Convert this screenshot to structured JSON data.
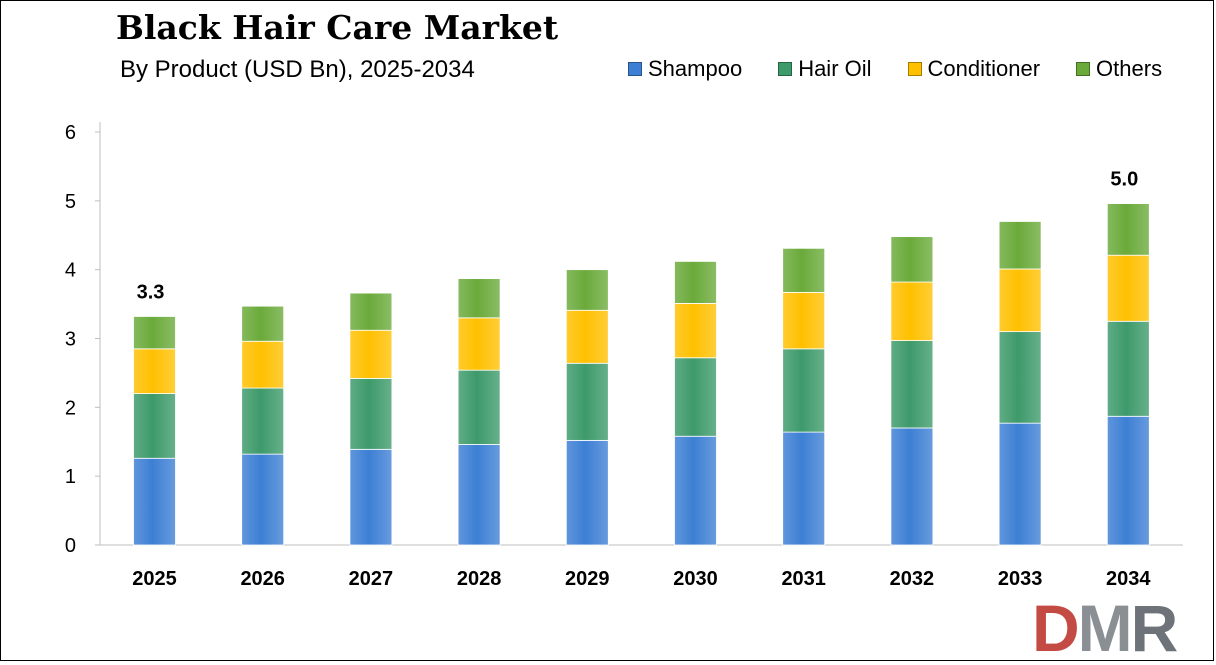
{
  "chart_data": {
    "type": "bar",
    "stacked": true,
    "title": "Black Hair Care Market",
    "subtitle": "By Product (USD Bn), 2025-2034",
    "categories": [
      "2025",
      "2026",
      "2027",
      "2028",
      "2029",
      "2030",
      "2031",
      "2032",
      "2033",
      "2034"
    ],
    "series": [
      {
        "name": "Shampoo",
        "color": "#3d7fd4",
        "values": [
          1.26,
          1.32,
          1.39,
          1.46,
          1.52,
          1.58,
          1.64,
          1.7,
          1.77,
          1.87
        ]
      },
      {
        "name": "Hair Oil",
        "color": "#3d9a6a",
        "values": [
          0.94,
          0.96,
          1.03,
          1.08,
          1.12,
          1.14,
          1.21,
          1.27,
          1.33,
          1.38
        ]
      },
      {
        "name": "Conditioner",
        "color": "#ffc000",
        "values": [
          0.65,
          0.68,
          0.7,
          0.76,
          0.77,
          0.79,
          0.82,
          0.85,
          0.91,
          0.96
        ]
      },
      {
        "name": "Others",
        "color": "#6aaa3a",
        "values": [
          0.47,
          0.51,
          0.54,
          0.57,
          0.59,
          0.61,
          0.64,
          0.66,
          0.69,
          0.75
        ]
      }
    ],
    "ylim": [
      0,
      6
    ],
    "yticks": [
      0,
      1,
      2,
      3,
      4,
      5,
      6
    ],
    "data_labels": [
      {
        "category": "2025",
        "text": "3.3"
      },
      {
        "category": "2034",
        "text": "5.0"
      }
    ],
    "legend_position": "top-right",
    "grid": false
  },
  "logo": {
    "d": "D",
    "m": "M",
    "r": "R"
  }
}
